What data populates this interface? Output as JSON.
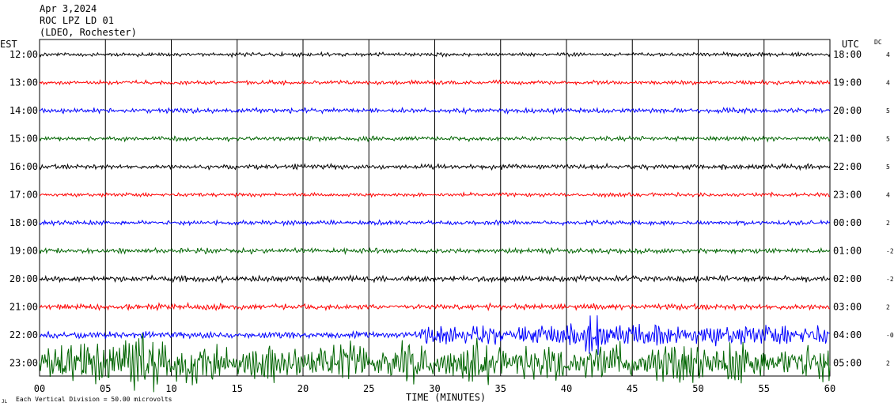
{
  "header": {
    "date": "Apr 3,2024",
    "station": "ROC LPZ LD 01",
    "network": "(LDEO, Rochester)"
  },
  "labels": {
    "left_tz": "EST",
    "right_tz": "UTC",
    "dc_header": "DC",
    "footer_note": "Each Vertical Division = 50.00 microvolts",
    "footer_mark": "JL"
  },
  "chart_data": {
    "type": "line",
    "title": "",
    "xlabel": "TIME (MINUTES)",
    "ylabel": "",
    "xlim": [
      0,
      60
    ],
    "x_ticks": [
      "00",
      "05",
      "10",
      "15",
      "20",
      "25",
      "30",
      "35",
      "40",
      "45",
      "50",
      "55",
      "60"
    ],
    "grid": true,
    "vertical_division_microvolts": 50.0,
    "trace_colors": [
      "#000000",
      "#ff0000",
      "#0000ff",
      "#006400"
    ],
    "rows": [
      {
        "local": "12:00",
        "utc": "18:00",
        "dc": "4",
        "amplitude": 0.08
      },
      {
        "local": "13:00",
        "utc": "19:00",
        "dc": "4",
        "amplitude": 0.08
      },
      {
        "local": "14:00",
        "utc": "20:00",
        "dc": "5",
        "amplitude": 0.1
      },
      {
        "local": "15:00",
        "utc": "21:00",
        "dc": "5",
        "amplitude": 0.09
      },
      {
        "local": "16:00",
        "utc": "22:00",
        "dc": "5",
        "amplitude": 0.1
      },
      {
        "local": "17:00",
        "utc": "23:00",
        "dc": "4",
        "amplitude": 0.08
      },
      {
        "local": "18:00",
        "utc": "00:00",
        "dc": "2",
        "amplitude": 0.09
      },
      {
        "local": "19:00",
        "utc": "01:00",
        "dc": "-2",
        "amplitude": 0.1
      },
      {
        "local": "20:00",
        "utc": "02:00",
        "dc": "-2",
        "amplitude": 0.12
      },
      {
        "local": "21:00",
        "utc": "03:00",
        "dc": "2",
        "amplitude": 0.12
      },
      {
        "local": "22:00",
        "utc": "04:00",
        "dc": "-0",
        "amplitude": 0.35
      },
      {
        "local": "23:00",
        "utc": "05:00",
        "dc": "2",
        "amplitude": 0.95
      }
    ]
  }
}
